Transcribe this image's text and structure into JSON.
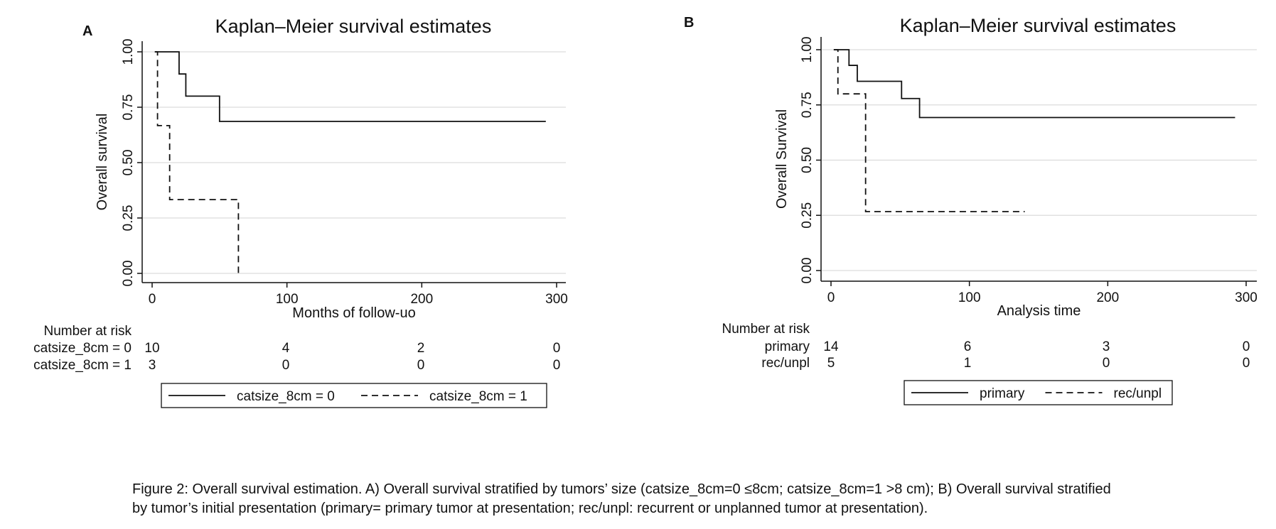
{
  "chart_data": [
    {
      "panel_label": "A",
      "type": "line",
      "chart_subtype": "kaplan-meier",
      "title": "Kaplan–Meier survival estimates",
      "xlabel": "Months of follow-uo",
      "ylabel": "Overall survival",
      "xlim": [
        0,
        300
      ],
      "ylim": [
        0,
        1
      ],
      "x_ticks": [
        "0",
        "100",
        "200",
        "300"
      ],
      "y_ticks": [
        "0.00",
        "0.25",
        "0.50",
        "0.75",
        "1.00"
      ],
      "grid": true,
      "legend_position": "bottom",
      "series": [
        {
          "name": "catsize_8cm = 0",
          "style": "solid",
          "steps": [
            [
              2,
              1.0
            ],
            [
              20,
              0.9
            ],
            [
              25,
              0.8
            ],
            [
              50,
              0.686
            ],
            [
              292,
              0.686
            ]
          ]
        },
        {
          "name": "catsize_8cm = 1",
          "style": "dashed",
          "steps": [
            [
              2,
              1.0
            ],
            [
              4,
              0.667
            ],
            [
              13,
              0.333
            ],
            [
              64,
              0.0
            ]
          ]
        }
      ],
      "risk_table": {
        "heading": "Number at risk",
        "times": [
          0,
          100,
          200,
          300
        ],
        "rows": [
          {
            "label": "catsize_8cm = 0",
            "values": [
              "10",
              "4",
              "2",
              "0"
            ]
          },
          {
            "label": "catsize_8cm = 1",
            "values": [
              "3",
              "0",
              "0",
              "0"
            ]
          }
        ]
      }
    },
    {
      "panel_label": "B",
      "type": "line",
      "chart_subtype": "kaplan-meier",
      "title": "Kaplan–Meier survival estimates",
      "xlabel": "Analysis time",
      "ylabel": "Overall Survival",
      "xlim": [
        0,
        300
      ],
      "ylim": [
        0,
        1
      ],
      "x_ticks": [
        "0",
        "100",
        "200",
        "300"
      ],
      "y_ticks": [
        "0.00",
        "0.25",
        "0.50",
        "0.75",
        "1.00"
      ],
      "grid": true,
      "legend_position": "bottom",
      "series": [
        {
          "name": "primary",
          "style": "solid",
          "steps": [
            [
              2,
              1.0
            ],
            [
              13,
              0.929
            ],
            [
              19,
              0.857
            ],
            [
              51,
              0.779
            ],
            [
              64,
              0.693
            ],
            [
              292,
              0.693
            ]
          ]
        },
        {
          "name": "rec/unpl",
          "style": "dashed",
          "steps": [
            [
              2,
              1.0
            ],
            [
              5,
              0.8
            ],
            [
              25,
              0.267
            ],
            [
              140,
              0.267
            ]
          ]
        }
      ],
      "risk_table": {
        "heading": "Number at risk",
        "times": [
          0,
          100,
          200,
          300
        ],
        "rows": [
          {
            "label": "primary",
            "values": [
              "14",
              "6",
              "3",
              "0"
            ]
          },
          {
            "label": "rec/unpl",
            "values": [
              "5",
              "1",
              "0",
              "0"
            ]
          }
        ]
      }
    }
  ],
  "caption": {
    "line1": "Figure 2: Overall survival estimation. A) Overall survival stratified by tumors’ size (catsize_8cm=0  ≤8cm; catsize_8cm=1 >8 cm); B) Overall survival stratified",
    "line2": "by tumor’s initial presentation (primary= primary tumor at presentation; rec/unpl: recurrent or unplanned tumor at presentation)."
  }
}
